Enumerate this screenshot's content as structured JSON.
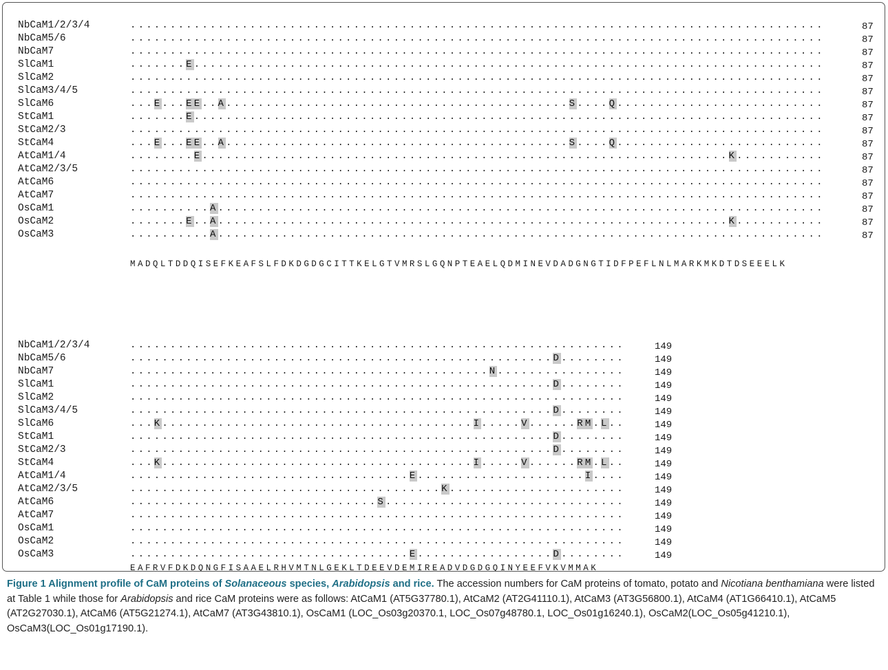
{
  "blocks": [
    {
      "count": "87",
      "consensus": "MADQLTDDQISEFKEAFSLFDKDGDGCITTKELGTVMRSLGQNPTEAELQDMINEVDADGNGTIDFPEFLNLMARKMKDTDSEEELK",
      "rows": [
        {
          "name": "NbCaM1/2/3/4",
          "subs": []
        },
        {
          "name": "NbCaM5/6",
          "subs": []
        },
        {
          "name": "NbCaM7",
          "subs": []
        },
        {
          "name": "SlCaM1",
          "subs": [
            {
              "pos": 7,
              "aa": "E"
            }
          ]
        },
        {
          "name": "SlCaM2",
          "subs": []
        },
        {
          "name": "SlCaM3/4/5",
          "subs": []
        },
        {
          "name": "SlCaM6",
          "subs": [
            {
              "pos": 3,
              "aa": "E"
            },
            {
              "pos": 7,
              "aa": "E"
            },
            {
              "pos": 8,
              "aa": "E"
            },
            {
              "pos": 11,
              "aa": "A"
            },
            {
              "pos": 55,
              "aa": "S"
            },
            {
              "pos": 60,
              "aa": "Q"
            }
          ]
        },
        {
          "name": "StCaM1",
          "subs": [
            {
              "pos": 7,
              "aa": "E"
            }
          ]
        },
        {
          "name": "StCaM2/3",
          "subs": []
        },
        {
          "name": "StCaM4",
          "subs": [
            {
              "pos": 3,
              "aa": "E"
            },
            {
              "pos": 7,
              "aa": "E"
            },
            {
              "pos": 8,
              "aa": "E"
            },
            {
              "pos": 11,
              "aa": "A"
            },
            {
              "pos": 55,
              "aa": "S"
            },
            {
              "pos": 60,
              "aa": "Q"
            }
          ]
        },
        {
          "name": "AtCaM1/4",
          "subs": [
            {
              "pos": 8,
              "aa": "E"
            },
            {
              "pos": 75,
              "aa": "K"
            }
          ]
        },
        {
          "name": "AtCaM2/3/5",
          "subs": []
        },
        {
          "name": "AtCaM6",
          "subs": []
        },
        {
          "name": "AtCaM7",
          "subs": []
        },
        {
          "name": "OsCaM1",
          "subs": [
            {
              "pos": 10,
              "aa": "A"
            }
          ]
        },
        {
          "name": "OsCaM2",
          "subs": [
            {
              "pos": 7,
              "aa": "E"
            },
            {
              "pos": 10,
              "aa": "A"
            },
            {
              "pos": 75,
              "aa": "K"
            }
          ]
        },
        {
          "name": "OsCaM3",
          "subs": [
            {
              "pos": 10,
              "aa": "A"
            }
          ]
        }
      ]
    },
    {
      "count": "149",
      "consensus": "EAFRVFDKDQNGFISAAELRHVMTNLGEKLTDEEVDEMIREADVDGDGQINYEEFVKVMMAK",
      "rows": [
        {
          "name": "NbCaM1/2/3/4",
          "subs": []
        },
        {
          "name": "NbCaM5/6",
          "subs": [
            {
              "pos": 53,
              "aa": "D"
            }
          ]
        },
        {
          "name": "NbCaM7",
          "subs": [
            {
              "pos": 45,
              "aa": "N"
            }
          ]
        },
        {
          "name": "SlCaM1",
          "subs": [
            {
              "pos": 53,
              "aa": "D"
            }
          ]
        },
        {
          "name": "SlCaM2",
          "subs": []
        },
        {
          "name": "SlCaM3/4/5",
          "subs": [
            {
              "pos": 53,
              "aa": "D"
            }
          ]
        },
        {
          "name": "SlCaM6",
          "subs": [
            {
              "pos": 3,
              "aa": "K"
            },
            {
              "pos": 43,
              "aa": "I"
            },
            {
              "pos": 49,
              "aa": "V"
            },
            {
              "pos": 56,
              "aa": "R"
            },
            {
              "pos": 57,
              "aa": "M"
            },
            {
              "pos": 59,
              "aa": "L"
            }
          ]
        },
        {
          "name": "StCaM1",
          "subs": [
            {
              "pos": 53,
              "aa": "D"
            }
          ]
        },
        {
          "name": "StCaM2/3",
          "subs": [
            {
              "pos": 53,
              "aa": "D"
            }
          ]
        },
        {
          "name": "StCaM4",
          "subs": [
            {
              "pos": 3,
              "aa": "K"
            },
            {
              "pos": 43,
              "aa": "I"
            },
            {
              "pos": 49,
              "aa": "V"
            },
            {
              "pos": 56,
              "aa": "R"
            },
            {
              "pos": 57,
              "aa": "M"
            },
            {
              "pos": 59,
              "aa": "L"
            }
          ]
        },
        {
          "name": "AtCaM1/4",
          "subs": [
            {
              "pos": 35,
              "aa": "E"
            },
            {
              "pos": 57,
              "aa": "I"
            }
          ]
        },
        {
          "name": "AtCaM2/3/5",
          "subs": [
            {
              "pos": 39,
              "aa": "K"
            }
          ]
        },
        {
          "name": "AtCaM6",
          "subs": [
            {
              "pos": 31,
              "aa": "S"
            }
          ]
        },
        {
          "name": "AtCaM7",
          "subs": []
        },
        {
          "name": "OsCaM1",
          "subs": []
        },
        {
          "name": "OsCaM2",
          "subs": []
        },
        {
          "name": "OsCaM3",
          "subs": [
            {
              "pos": 35,
              "aa": "E"
            },
            {
              "pos": 53,
              "aa": "D"
            }
          ]
        }
      ]
    }
  ],
  "caption": {
    "label": "Figure 1",
    "title_parts": [
      {
        "text": "Alignment profile of CaM proteins of ",
        "italic": false
      },
      {
        "text": "Solanaceous",
        "italic": true
      },
      {
        "text": " species, ",
        "italic": false
      },
      {
        "text": "Arabidopsis",
        "italic": true
      },
      {
        "text": " and rice.",
        "italic": false
      }
    ],
    "body_parts": [
      {
        "text": " The accession numbers for CaM proteins of tomato, potato and ",
        "italic": false
      },
      {
        "text": "Nicotiana benthamiana",
        "italic": true
      },
      {
        "text": " were listed at Table 1 while those for ",
        "italic": false
      },
      {
        "text": "Arabidopsis",
        "italic": true
      },
      {
        "text": " and rice CaM proteins were as follows: AtCaM1 (AT5G37780.1), AtCaM2 (AT2G41110.1), AtCaM3 (AT3G56800.1), AtCaM4 (AT1G66410.1), AtCaM5 (AT2G27030.1), AtCaM6 (AT5G21274.1), AtCaM7 (AT3G43810.1), OsCaM1 (LOC_Os03g20370.1, LOC_Os07g48780.1, LOC_Os01g16240.1), OsCaM2(LOC_Os05g41210.1), OsCaM3(LOC_Os01g17190.1).",
        "italic": false
      }
    ]
  }
}
